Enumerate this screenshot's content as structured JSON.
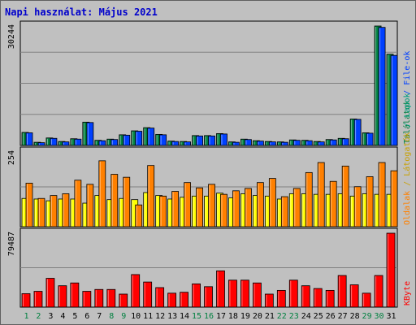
{
  "page": {
    "title": "Napi használat: Május 2021"
  },
  "colors": {
    "hits": "#008040",
    "files": "#0040ff",
    "pages": "#ff8000",
    "visits": "#ffff00",
    "kbytes": "#ff0000",
    "weekend": "#008040",
    "weekday": "#000000",
    "grid": "#808080",
    "plot_bg": "#c0c0c0"
  },
  "chart_data": [
    {
      "type": "bar",
      "name": "hits-files",
      "ymax_label": "30244",
      "ylim": [
        0,
        30244
      ],
      "legend": {
        "parts": [
          "Találatok",
          "File-ok"
        ],
        "separator": " / "
      },
      "series": [
        {
          "name": "Találatok",
          "values": [
            3300,
            800,
            1900,
            1000,
            1700,
            5900,
            1300,
            1600,
            2700,
            3700,
            4500,
            2800,
            1100,
            1000,
            2500,
            2500,
            3000,
            900,
            1600,
            1200,
            1000,
            900,
            1400,
            1300,
            1000,
            1500,
            1800,
            6700,
            3200,
            30244,
            23100
          ]
        },
        {
          "name": "File-ok",
          "values": [
            3200,
            700,
            1800,
            900,
            1600,
            5800,
            1200,
            1500,
            2600,
            3600,
            4400,
            2700,
            1000,
            900,
            2400,
            2400,
            2900,
            800,
            1500,
            1100,
            900,
            800,
            1300,
            1200,
            900,
            1400,
            1700,
            6600,
            3100,
            29900,
            22800
          ]
        }
      ]
    },
    {
      "type": "bar",
      "name": "visits-pages",
      "ymax_label": "254",
      "ylim": [
        0,
        254
      ],
      "legend": {
        "parts": [
          "Oldalak",
          "Látogatók",
          "Lapok"
        ],
        "separator": " / "
      },
      "series": [
        {
          "name": "Látogatók",
          "values": [
            96,
            94,
            88,
            94,
            94,
            80,
            106,
            92,
            96,
            92,
            116,
            106,
            94,
            100,
            104,
            104,
            114,
            98,
            112,
            106,
            104,
            94,
            112,
            112,
            110,
            110,
            112,
            104,
            112,
            110,
            110
          ]
        },
        {
          "name": "Oldalak",
          "values": [
            148,
            96,
            106,
            112,
            158,
            144,
            224,
            178,
            168,
            74,
            208,
            104,
            120,
            150,
            132,
            144,
            110,
            122,
            130,
            150,
            164,
            102,
            130,
            184,
            218,
            154,
            206,
            136,
            170,
            218,
            190
          ]
        }
      ]
    },
    {
      "type": "bar",
      "name": "kbytes",
      "ymax_label": "79487",
      "ylim": [
        0,
        79487
      ],
      "legend": {
        "parts": [
          "KByte"
        ],
        "separator": ""
      },
      "series": [
        {
          "name": "KByte",
          "values": [
            14500,
            17000,
            31000,
            23000,
            26000,
            17000,
            19000,
            19000,
            14000,
            35000,
            27000,
            21000,
            15000,
            16000,
            25000,
            22000,
            39000,
            29000,
            29000,
            26000,
            14000,
            18000,
            29000,
            23000,
            20000,
            18000,
            34000,
            24000,
            15000,
            34000,
            79487
          ]
        }
      ]
    }
  ],
  "x_axis": {
    "labels": [
      "1",
      "2",
      "3",
      "4",
      "5",
      "6",
      "7",
      "8",
      "9",
      "10",
      "11",
      "12",
      "13",
      "14",
      "15",
      "16",
      "17",
      "18",
      "19",
      "20",
      "21",
      "22",
      "23",
      "24",
      "25",
      "26",
      "27",
      "28",
      "29",
      "30",
      "31"
    ],
    "weekend": [
      true,
      true,
      false,
      false,
      false,
      false,
      false,
      true,
      true,
      false,
      false,
      false,
      false,
      false,
      true,
      true,
      false,
      false,
      false,
      false,
      false,
      true,
      true,
      false,
      false,
      false,
      false,
      false,
      true,
      true,
      false
    ]
  }
}
